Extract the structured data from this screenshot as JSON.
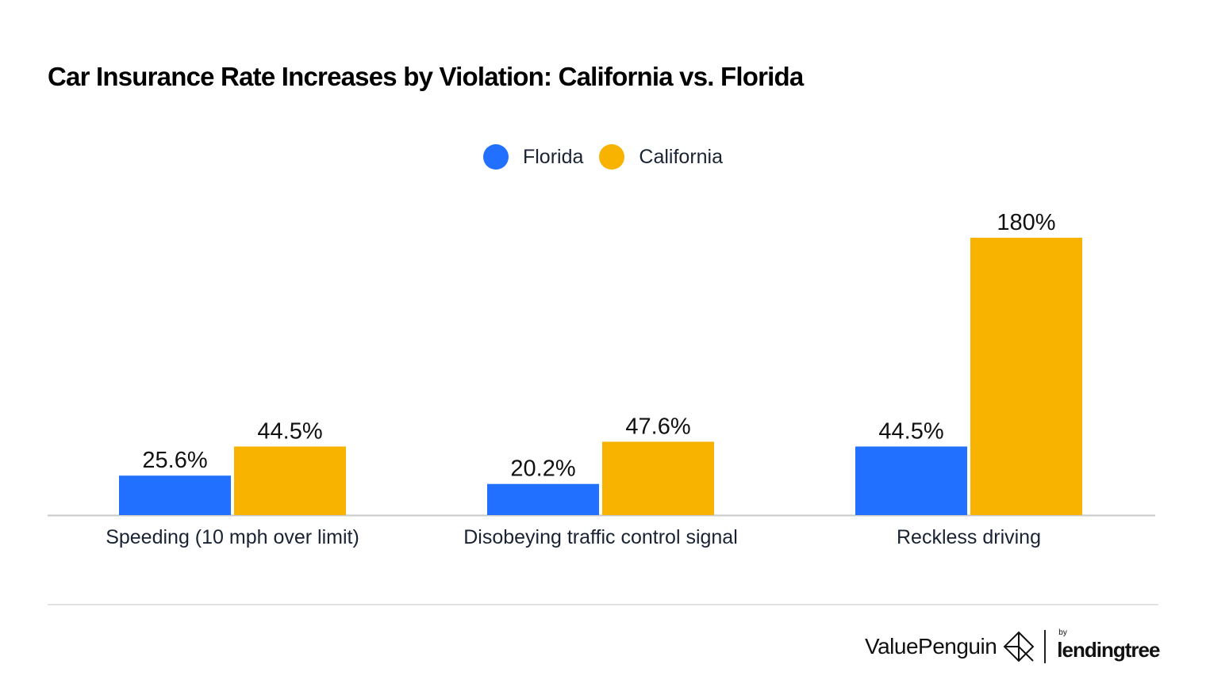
{
  "chart_data": {
    "type": "bar",
    "title": "Car Insurance Rate Increases by Violation: California vs. Florida",
    "categories": [
      "Speeding (10 mph over limit)",
      "Disobeying traffic control signal",
      "Reckless driving"
    ],
    "series": [
      {
        "name": "Florida",
        "color": "#2170ff",
        "values": [
          25.6,
          20.2,
          44.5
        ],
        "labels": [
          "25.6%",
          "20.2%",
          "44.5%"
        ]
      },
      {
        "name": "California",
        "color": "#f8b200",
        "values": [
          44.5,
          47.6,
          180
        ],
        "labels": [
          "44.5%",
          "47.6%",
          "180%"
        ]
      }
    ],
    "xlabel": "",
    "ylabel": "",
    "ylim": [
      0,
      180
    ],
    "grid": false,
    "legend": "top-center",
    "unit": "%"
  },
  "branding": {
    "logo": "ValuePenguin by lendingtree",
    "valuepenguin": "ValuePenguin",
    "by": "by",
    "lendingtree": "lendingtree"
  }
}
